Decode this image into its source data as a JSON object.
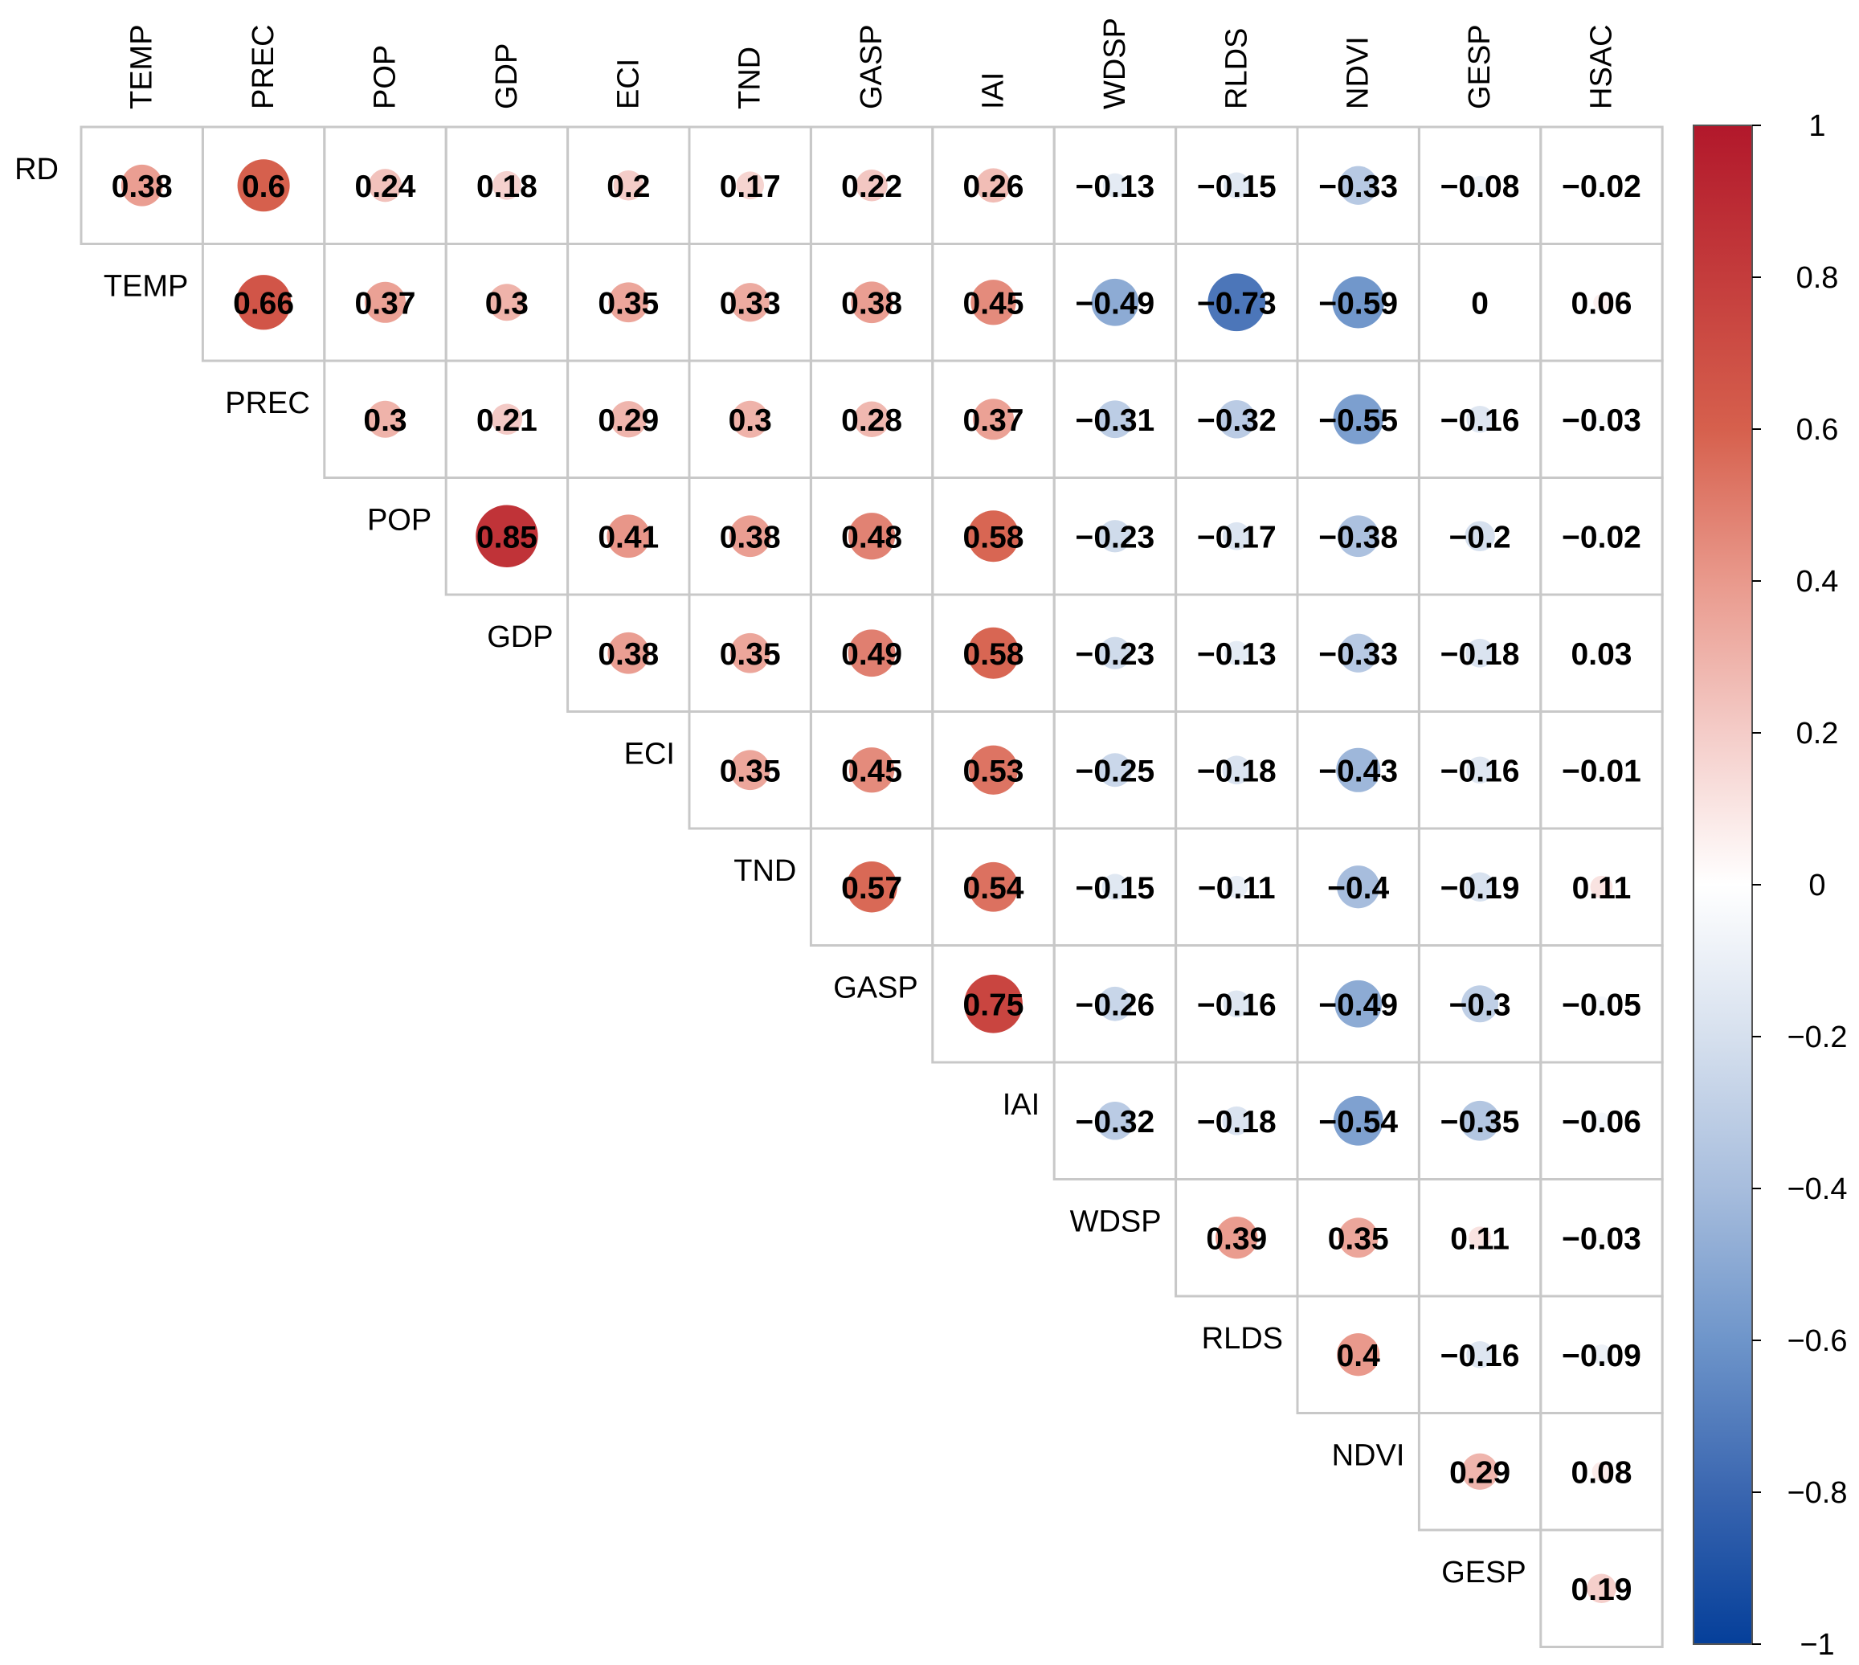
{
  "chart_data": {
    "type": "heatmap",
    "subtype": "correlation-matrix-upper-triangle-circles",
    "title": "",
    "variables": [
      "RD",
      "TEMP",
      "PREC",
      "POP",
      "GDP",
      "ECI",
      "TND",
      "GASP",
      "IAI",
      "WDSP",
      "RLDS",
      "NDVI",
      "GESP",
      "HSAC"
    ],
    "column_labels": [
      "TEMP",
      "PREC",
      "POP",
      "GDP",
      "ECI",
      "TND",
      "GASP",
      "IAI",
      "WDSP",
      "RLDS",
      "NDVI",
      "GESP",
      "HSAC"
    ],
    "row_labels": [
      "RD",
      "TEMP",
      "PREC",
      "POP",
      "GDP",
      "ECI",
      "TND",
      "GASP",
      "IAI",
      "WDSP",
      "RLDS",
      "NDVI",
      "GESP"
    ],
    "matrix": [
      [
        "0.38",
        "0.6",
        "0.24",
        "0.18",
        "0.2",
        "0.17",
        "0.22",
        "0.26",
        "−0.13",
        "−0.15",
        "−0.33",
        "−0.08",
        "−0.02"
      ],
      [
        "0.66",
        "0.37",
        "0.3",
        "0.35",
        "0.33",
        "0.38",
        "0.45",
        "−0.49",
        "−0.73",
        "−0.59",
        "0",
        "0.06"
      ],
      [
        "0.3",
        "0.21",
        "0.29",
        "0.3",
        "0.28",
        "0.37",
        "−0.31",
        "−0.32",
        "−0.55",
        "−0.16",
        "−0.03"
      ],
      [
        "0.85",
        "0.41",
        "0.38",
        "0.48",
        "0.58",
        "−0.23",
        "−0.17",
        "−0.38",
        "−0.2",
        "−0.02"
      ],
      [
        "0.38",
        "0.35",
        "0.49",
        "0.58",
        "−0.23",
        "−0.13",
        "−0.33",
        "−0.18",
        "0.03"
      ],
      [
        "0.35",
        "0.45",
        "0.53",
        "−0.25",
        "−0.18",
        "−0.43",
        "−0.16",
        "−0.01"
      ],
      [
        "0.57",
        "0.54",
        "−0.15",
        "−0.11",
        "−0.4",
        "−0.19",
        "0.11"
      ],
      [
        "0.75",
        "−0.26",
        "−0.16",
        "−0.49",
        "−0.3",
        "−0.05"
      ],
      [
        "−0.32",
        "−0.18",
        "−0.54",
        "−0.35",
        "−0.06"
      ],
      [
        "0.39",
        "0.35",
        "0.11",
        "−0.03"
      ],
      [
        "0.4",
        "−0.16",
        "−0.09"
      ],
      [
        "0.29",
        "0.08"
      ],
      [
        "0.19"
      ]
    ],
    "colorbar": {
      "range": [
        -1,
        1
      ],
      "ticks": [
        "1",
        "0.8",
        "0.6",
        "0.4",
        "0.2",
        "0",
        "−0.2",
        "−0.4",
        "−0.6",
        "−0.8",
        "−1"
      ],
      "colors": {
        "negative": "#053061",
        "mid_negative": "#4393c3",
        "zero": "#ffffff",
        "mid_positive": "#d6604d",
        "positive": "#b2182b"
      }
    },
    "legend_position": "right",
    "grid": true
  }
}
